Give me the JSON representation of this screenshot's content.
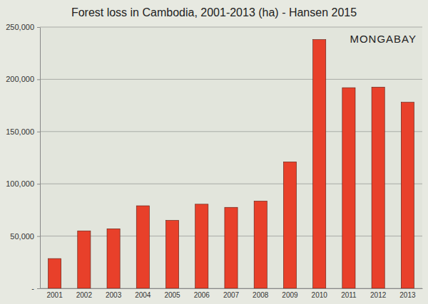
{
  "chart_data": {
    "type": "bar",
    "title": "Forest loss in Cambodia, 2001-2013 (ha) - Hansen 2015",
    "annotations": [
      "MONGABAY"
    ],
    "categories": [
      "2001",
      "2002",
      "2003",
      "2004",
      "2005",
      "2006",
      "2007",
      "2008",
      "2009",
      "2010",
      "2011",
      "2012",
      "2013"
    ],
    "values": [
      28500,
      55000,
      57000,
      79000,
      65000,
      80500,
      77500,
      83500,
      121000,
      238000,
      192000,
      192500,
      178000
    ],
    "color": "#e8402a",
    "ylim": [
      0,
      250000
    ],
    "yticks": [
      {
        "value": 0,
        "label": "-"
      },
      {
        "value": 50000,
        "label": "50,000"
      },
      {
        "value": 100000,
        "label": "100,000"
      },
      {
        "value": 150000,
        "label": "150,000"
      },
      {
        "value": 200000,
        "label": "200,000"
      },
      {
        "value": 250000,
        "label": "250,000"
      }
    ],
    "grid": true
  }
}
